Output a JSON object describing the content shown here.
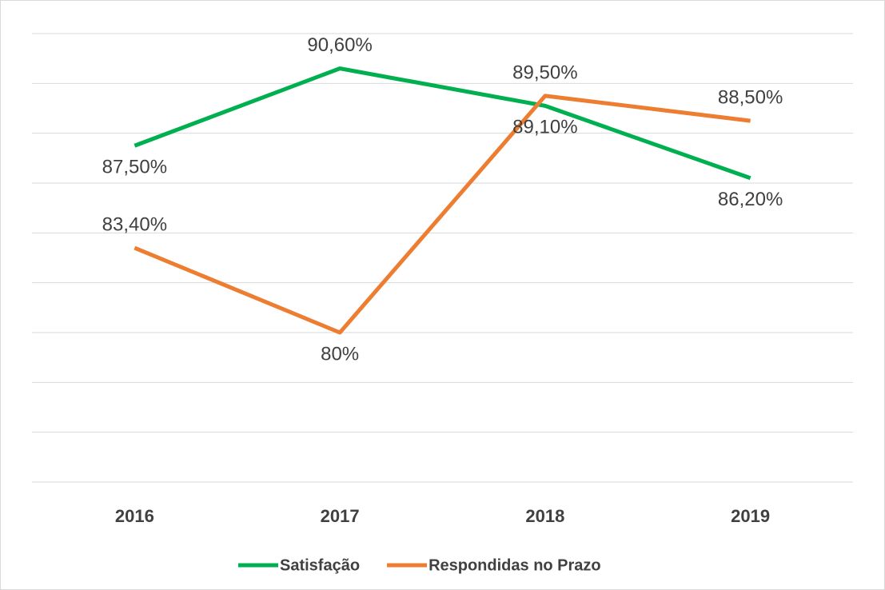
{
  "chart_data": {
    "type": "line",
    "categories": [
      "2016",
      "2017",
      "2018",
      "2019"
    ],
    "series": [
      {
        "name": "Satisfação",
        "color": "#00b050",
        "values": [
          87.5,
          90.6,
          89.1,
          86.2
        ],
        "value_labels": [
          "87,50%",
          "90,60%",
          "89,10%",
          "86,20%"
        ]
      },
      {
        "name": "Respondidas no Prazo",
        "color": "#ed7d31",
        "values": [
          83.4,
          80,
          89.5,
          88.5
        ],
        "value_labels": [
          "83,40%",
          "80%",
          "89,50%",
          "88,50%"
        ]
      }
    ],
    "ylim": [
      74,
      92
    ],
    "yticks": [
      74,
      76,
      78,
      80,
      82,
      84,
      86,
      88,
      90,
      92
    ],
    "grid": true
  }
}
